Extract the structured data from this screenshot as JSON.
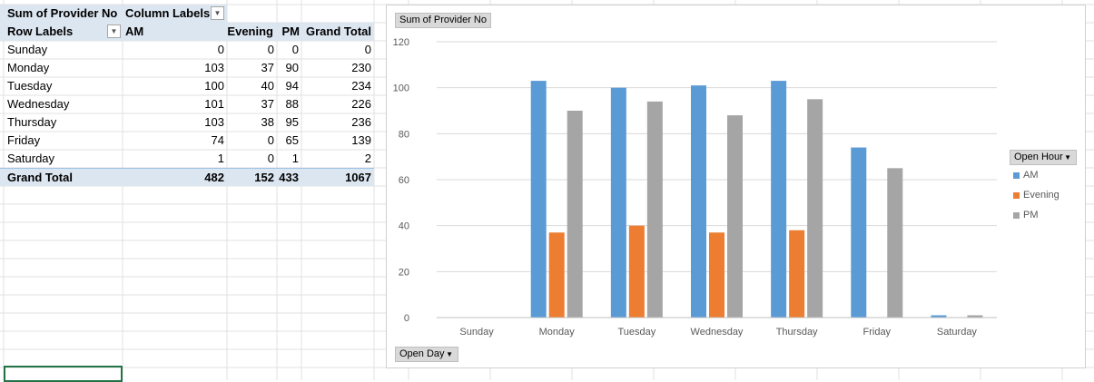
{
  "pivot": {
    "header1": {
      "values_label": "Sum of Provider No",
      "columns_label": "Column Labels"
    },
    "header2": {
      "rows_label": "Row Labels",
      "col_am": "AM",
      "col_evening": "Evening",
      "col_pm": "PM",
      "col_total": "Grand Total"
    },
    "rows": [
      {
        "label": "Sunday",
        "am": "0",
        "evening": "0",
        "pm": "0",
        "total": "0"
      },
      {
        "label": "Monday",
        "am": "103",
        "evening": "37",
        "pm": "90",
        "total": "230"
      },
      {
        "label": "Tuesday",
        "am": "100",
        "evening": "40",
        "pm": "94",
        "total": "234"
      },
      {
        "label": "Wednesday",
        "am": "101",
        "evening": "37",
        "pm": "88",
        "total": "226"
      },
      {
        "label": "Thursday",
        "am": "103",
        "evening": "38",
        "pm": "95",
        "total": "236"
      },
      {
        "label": "Friday",
        "am": "74",
        "evening": "0",
        "pm": "65",
        "total": "139"
      },
      {
        "label": "Saturday",
        "am": "1",
        "evening": "0",
        "pm": "1",
        "total": "2"
      }
    ],
    "grand_total": {
      "label": "Grand Total",
      "am": "482",
      "evening": "152",
      "pm": "433",
      "total": "1067"
    }
  },
  "chart_field_buttons": {
    "values": "Sum of Provider No",
    "legend_field": "Open Hour",
    "axis_field": "Open Day"
  },
  "chart_data": {
    "type": "bar",
    "categories": [
      "Sunday",
      "Monday",
      "Tuesday",
      "Wednesday",
      "Thursday",
      "Friday",
      "Saturday"
    ],
    "series": [
      {
        "name": "AM",
        "color": "#5b9bd5",
        "values": [
          0,
          103,
          100,
          101,
          103,
          74,
          1
        ]
      },
      {
        "name": "Evening",
        "color": "#ed7d31",
        "values": [
          0,
          37,
          40,
          37,
          38,
          0,
          0
        ]
      },
      {
        "name": "PM",
        "color": "#a5a5a5",
        "values": [
          0,
          90,
          94,
          88,
          95,
          65,
          1
        ]
      }
    ],
    "yticks": [
      "0",
      "20",
      "40",
      "60",
      "80",
      "100",
      "120"
    ],
    "ylim": [
      0,
      120
    ],
    "grid": true,
    "legend_position": "right"
  },
  "icons": {
    "dropdown": "dropdown-arrow-icon"
  }
}
